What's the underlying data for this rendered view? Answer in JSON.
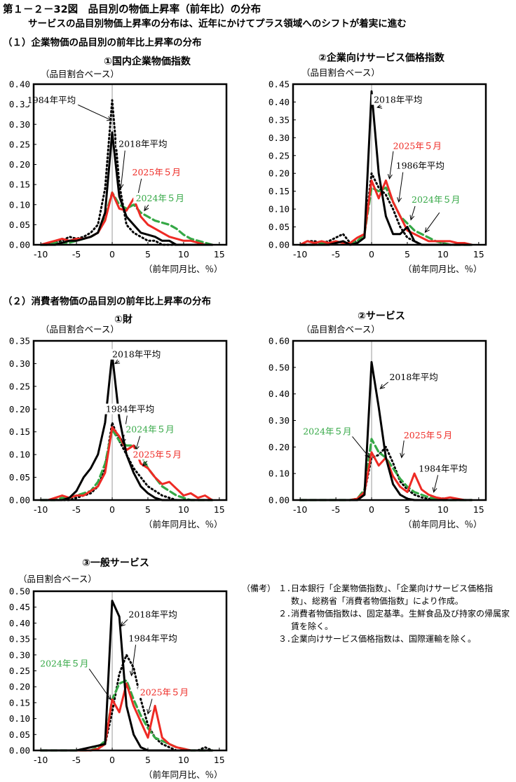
{
  "header": {
    "title": "第１－２－32図　品目別の物価上昇率（前年比）の分布",
    "subtitle": "サービスの品目別物価上昇率の分布は、近年にかけてプラス領域へのシフトが着実に進む"
  },
  "sections": {
    "s1": "（１）企業物価の品目別の前年比上昇率の分布",
    "s2": "（２）消費者物価の品目別の前年比上昇率の分布"
  },
  "axis_common": {
    "ylabel": "（品目割合ベース）",
    "xlabel": "（前年同月比、％）"
  },
  "colors": {
    "black": "#000000",
    "red": "#ee2a24",
    "green": "#35a846",
    "dotted": "#000000",
    "guide": "#9a9a9a"
  },
  "notes": {
    "head": "（備考）",
    "items": [
      {
        "num": "１．",
        "text": "日本銀行「企業物価指数」、「企業向けサービス価格指数」、総務省「消費者物価指数」により作成。"
      },
      {
        "num": "２．",
        "text": "消費者物価指数は、固定基準。生鮮食品及び持家の帰属家賃を除く。"
      },
      {
        "num": "３．",
        "text": "企業向けサービス価格指数は、国際運輸を除く。"
      }
    ]
  },
  "chart_data": [
    {
      "type": "line",
      "title": "①国内企業物価指数",
      "xlabel": "（前年同月比、％）",
      "ylabel": "（品目割合ベース）",
      "xlim": [
        -11,
        16
      ],
      "ylim": [
        0,
        0.4
      ],
      "xticks": [
        -10,
        -5,
        0,
        5,
        10,
        15
      ],
      "yticks": [
        "0.00",
        "0.05",
        "0.10",
        "0.15",
        "0.20",
        "0.25",
        "0.30",
        "0.35",
        "0.40"
      ],
      "x": [
        -10,
        -9,
        -8,
        -7,
        -6,
        -5,
        -4,
        -3,
        -2,
        -1,
        0,
        1,
        2,
        3,
        4,
        5,
        6,
        7,
        8,
        9,
        10,
        11,
        12,
        13,
        14
      ],
      "series": [
        {
          "name": "1984年平均",
          "style": "dotted",
          "values": [
            0,
            0,
            0.005,
            0.01,
            0.02,
            0.015,
            0.02,
            0.03,
            0.05,
            0.14,
            0.36,
            0.15,
            0.05,
            0.03,
            0.02,
            0.01,
            0.01,
            0,
            0,
            0,
            0,
            0,
            0,
            0,
            0
          ]
        },
        {
          "name": "2018年平均",
          "style": "black",
          "values": [
            0,
            0,
            0,
            0.005,
            0.01,
            0.01,
            0.015,
            0.02,
            0.03,
            0.08,
            0.28,
            0.12,
            0.07,
            0.05,
            0.03,
            0.025,
            0.02,
            0.01,
            0.01,
            0,
            0,
            0,
            0,
            0,
            0
          ]
        },
        {
          "name": "2025年５月",
          "style": "red",
          "values": [
            0,
            0.005,
            0.01,
            0.015,
            0.01,
            0.015,
            0.015,
            0.02,
            0.03,
            0.06,
            0.13,
            0.09,
            0.085,
            0.115,
            0.07,
            0.05,
            0.04,
            0.03,
            0.02,
            0.015,
            0.01,
            0.01,
            0.005,
            0,
            0
          ]
        },
        {
          "name": "2024年５月",
          "style": "green",
          "values": [
            0,
            0,
            0.005,
            0.005,
            0.005,
            0.01,
            0.015,
            0.02,
            0.03,
            0.07,
            0.13,
            0.1,
            0.09,
            0.1,
            0.08,
            0.07,
            0.06,
            0.055,
            0.05,
            0.04,
            0.025,
            0.015,
            0.01,
            0.005,
            0
          ]
        }
      ],
      "annotations": [
        {
          "text": "1984年平均",
          "color": "black",
          "x": -8.5,
          "y": 0.355,
          "ax": -0.1,
          "ay": 0.31
        },
        {
          "text": "2018年平均",
          "color": "black",
          "x": 4.3,
          "y": 0.245,
          "ax": 1.2,
          "ay": 0.14
        },
        {
          "text": "2025年５月",
          "color": "red",
          "x": 6.2,
          "y": 0.175,
          "ax": 3.5,
          "ay": 0.115
        },
        {
          "text": "2024年５月",
          "color": "green",
          "x": 6.7,
          "y": 0.11,
          "ax": 4.5,
          "ay": 0.085
        }
      ]
    },
    {
      "type": "line",
      "title": "②企業向けサービス価格指数",
      "xlabel": "（前年同月比、％）",
      "ylabel": "（品目割合ベース）",
      "xlim": [
        -11,
        16
      ],
      "ylim": [
        0,
        0.45
      ],
      "xticks": [
        -10,
        -5,
        0,
        5,
        10,
        15
      ],
      "yticks": [
        "0.00",
        "0.05",
        "0.10",
        "0.15",
        "0.20",
        "0.25",
        "0.30",
        "0.35",
        "0.40",
        "0.45"
      ],
      "x": [
        -10,
        -9,
        -8,
        -7,
        -6,
        -5,
        -4,
        -3,
        -2,
        -1,
        0,
        1,
        2,
        3,
        4,
        5,
        6,
        7,
        8,
        9,
        10,
        11,
        12,
        13,
        14
      ],
      "series": [
        {
          "name": "1986年平均",
          "style": "dotted",
          "values": [
            0,
            0.01,
            0.01,
            0.005,
            0.01,
            0.02,
            0.03,
            0.005,
            0.01,
            0.03,
            0.2,
            0.16,
            0.14,
            0.1,
            0.05,
            0.02,
            0.01,
            0,
            0,
            0,
            0,
            0,
            0,
            0,
            0
          ]
        },
        {
          "name": "2018年平均",
          "style": "black",
          "values": [
            0,
            0,
            0,
            0,
            0,
            0.005,
            0.01,
            0,
            0.005,
            0.02,
            0.43,
            0.2,
            0.08,
            0.03,
            0.03,
            0.05,
            0.01,
            0,
            0,
            0,
            0,
            0,
            0,
            0,
            0
          ]
        },
        {
          "name": "2025年５月",
          "style": "red",
          "values": [
            0,
            0.01,
            0.005,
            0.01,
            0.005,
            0.01,
            0.005,
            0.005,
            0.02,
            0.03,
            0.18,
            0.13,
            0.18,
            0.12,
            0.08,
            0.04,
            0.03,
            0.02,
            0.01,
            0.01,
            0.01,
            0.01,
            0.005,
            0.005,
            0
          ]
        },
        {
          "name": "2024年５月",
          "style": "green",
          "values": [
            0,
            0,
            0,
            0.005,
            0.005,
            0.01,
            0.005,
            0.005,
            0.01,
            0.03,
            0.16,
            0.15,
            0.16,
            0.12,
            0.08,
            0.06,
            0.04,
            0.03,
            0.02,
            0.01,
            0.005,
            0,
            0,
            0,
            0
          ]
        }
      ],
      "annotations": [
        {
          "text": "2018年平均",
          "color": "black",
          "x": 3.7,
          "y": 0.4,
          "ax": 0.8,
          "ay": 0.385
        },
        {
          "text": "2025年５月",
          "color": "red",
          "x": 6.4,
          "y": 0.27,
          "ax": 2.5,
          "ay": 0.185
        },
        {
          "text": "1986年平均",
          "color": "black",
          "x": 6.8,
          "y": 0.215,
          "ax": 3.8,
          "ay": 0.12
        },
        {
          "text": "2024年５月",
          "color": "green",
          "x": 9,
          "y": 0.12,
          "ax": 5.5,
          "ay": 0.07
        },
        {
          "text": "",
          "color": "black",
          "x": 9.5,
          "y": 0.09,
          "ax": 7.5,
          "ay": 0.035
        }
      ]
    },
    {
      "type": "line",
      "title": "①財",
      "xlabel": "（前年同月比、％）",
      "ylabel": "（品目割合ベース）",
      "xlim": [
        -11,
        16
      ],
      "ylim": [
        0,
        0.35
      ],
      "xticks": [
        -10,
        -5,
        0,
        5,
        10,
        15
      ],
      "yticks": [
        "0.00",
        "0.05",
        "0.10",
        "0.15",
        "0.20",
        "0.25",
        "0.30",
        "0.35"
      ],
      "x": [
        -10,
        -9,
        -8,
        -7,
        -6,
        -5,
        -4,
        -3,
        -2,
        -1,
        0,
        1,
        2,
        3,
        4,
        5,
        6,
        7,
        8,
        9,
        10,
        11,
        12,
        13,
        14
      ],
      "series": [
        {
          "name": "1984年平均",
          "style": "dotted",
          "values": [
            0,
            0,
            0,
            0,
            0,
            0.005,
            0.01,
            0.015,
            0.03,
            0.07,
            0.17,
            0.13,
            0.1,
            0.07,
            0.05,
            0.03,
            0.02,
            0.01,
            0.005,
            0,
            0,
            0,
            0,
            0,
            0
          ]
        },
        {
          "name": "2018年平均",
          "style": "black",
          "values": [
            0,
            0,
            0,
            0,
            0.005,
            0.02,
            0.05,
            0.07,
            0.1,
            0.17,
            0.32,
            0.18,
            0.1,
            0.06,
            0.03,
            0.015,
            0.005,
            0,
            0,
            0,
            0,
            0,
            0,
            0,
            0
          ]
        },
        {
          "name": "2025年５月",
          "style": "red",
          "values": [
            0,
            0,
            0.005,
            0.01,
            0.005,
            0.01,
            0.01,
            0.02,
            0.03,
            0.06,
            0.16,
            0.14,
            0.11,
            0.12,
            0.08,
            0.07,
            0.05,
            0.035,
            0.04,
            0.025,
            0.01,
            0.015,
            0.005,
            0.01,
            0
          ]
        },
        {
          "name": "2024年５月",
          "style": "green",
          "values": [
            0,
            0,
            0,
            0.005,
            0.005,
            0.01,
            0.015,
            0.02,
            0.04,
            0.08,
            0.155,
            0.13,
            0.12,
            0.12,
            0.1,
            0.07,
            0.05,
            0.03,
            0.02,
            0.01,
            0.005,
            0,
            0,
            0,
            0
          ]
        }
      ],
      "annotations": [
        {
          "text": "2018年平均",
          "color": "black",
          "x": 3.4,
          "y": 0.315,
          "ax": 0.4,
          "ay": 0.3
        },
        {
          "text": "1984年平均",
          "color": "black",
          "x": 2.5,
          "y": 0.195,
          "ax": 1.5,
          "ay": 0.125
        },
        {
          "text": "2024年５月",
          "color": "green",
          "x": 5.3,
          "y": 0.15,
          "ax": 3.3,
          "ay": 0.11
        },
        {
          "text": "2025年５月",
          "color": "red",
          "x": 6.3,
          "y": 0.095,
          "ax": 4.3,
          "ay": 0.075
        }
      ]
    },
    {
      "type": "line",
      "title": "②サービス",
      "xlabel": "（前年同月比、％）",
      "ylabel": "（品目割合ベース）",
      "xlim": [
        -11,
        16
      ],
      "ylim": [
        0,
        0.6
      ],
      "xticks": [
        -10,
        -5,
        0,
        5,
        10,
        15
      ],
      "yticks": [
        "0.00",
        "0.10",
        "0.20",
        "0.30",
        "0.40",
        "0.50",
        "0.60"
      ],
      "x": [
        -10,
        -9,
        -8,
        -7,
        -6,
        -5,
        -4,
        -3,
        -2,
        -1,
        0,
        1,
        2,
        3,
        4,
        5,
        6,
        7,
        8,
        9,
        10,
        11,
        12,
        13,
        14
      ],
      "series": [
        {
          "name": "1984年平均",
          "style": "dotted",
          "values": [
            0,
            0,
            0,
            0,
            0,
            0,
            0,
            0,
            0.005,
            0.03,
            0.16,
            0.17,
            0.2,
            0.14,
            0.07,
            0.04,
            0.02,
            0.01,
            0.005,
            0,
            0,
            0,
            0,
            0,
            0
          ]
        },
        {
          "name": "2018年平均",
          "style": "black",
          "values": [
            0,
            0,
            0,
            0,
            0,
            0,
            0,
            0,
            0,
            0.02,
            0.52,
            0.35,
            0.16,
            0.06,
            0.02,
            0.005,
            0,
            0,
            0,
            0,
            0,
            0,
            0,
            0,
            0
          ]
        },
        {
          "name": "2025年５月",
          "style": "red",
          "values": [
            0,
            0,
            0,
            0,
            0,
            0,
            0,
            0,
            0.005,
            0.03,
            0.18,
            0.13,
            0.16,
            0.09,
            0.05,
            0.03,
            0.1,
            0.04,
            0.02,
            0.01,
            0.005,
            0.01,
            0.005,
            0,
            0
          ]
        },
        {
          "name": "2024年５月",
          "style": "green",
          "values": [
            0,
            0,
            0,
            0,
            0,
            0,
            0,
            0,
            0.005,
            0.04,
            0.23,
            0.18,
            0.16,
            0.12,
            0.08,
            0.05,
            0.03,
            0.02,
            0.01,
            0.005,
            0,
            0,
            0,
            0,
            0
          ]
        }
      ],
      "annotations": [
        {
          "text": "2018年平均",
          "color": "black",
          "x": 5.9,
          "y": 0.455,
          "ax": 1.2,
          "ay": 0.42
        },
        {
          "text": "2024年５月",
          "color": "green",
          "x": -6.2,
          "y": 0.25,
          "ax": -0.3,
          "ay": 0.16
        },
        {
          "text": "2025年５月",
          "color": "red",
          "x": 7.9,
          "y": 0.235,
          "ax": 4.2,
          "ay": 0.16
        },
        {
          "text": "1984年平均",
          "color": "black",
          "x": 10,
          "y": 0.11,
          "ax": 8.7,
          "ay": 0.03
        }
      ]
    },
    {
      "type": "line",
      "title": "③一般サービス",
      "xlabel": "（前年同月比、％）",
      "ylabel": "（品目割合ベース）",
      "xlim": [
        -11,
        16
      ],
      "ylim": [
        0,
        0.5
      ],
      "xticks": [
        -10,
        -5,
        0,
        5,
        10,
        15
      ],
      "yticks": [
        "0.00",
        "0.05",
        "0.10",
        "0.15",
        "0.20",
        "0.25",
        "0.30",
        "0.35",
        "0.40",
        "0.45",
        "0.50"
      ],
      "x": [
        -10,
        -9,
        -8,
        -7,
        -6,
        -5,
        -4,
        -3,
        -2,
        -1,
        0,
        1,
        2,
        3,
        4,
        5,
        6,
        7,
        8,
        9,
        10,
        11,
        12,
        13,
        14
      ],
      "series": [
        {
          "name": "1984年平均",
          "style": "dotted",
          "values": [
            0,
            0,
            0,
            0,
            0,
            0,
            0,
            0,
            0.005,
            0.02,
            0.12,
            0.24,
            0.3,
            0.26,
            0.16,
            0.08,
            0.04,
            0.02,
            0.01,
            0,
            0,
            0,
            0,
            0.01,
            0
          ]
        },
        {
          "name": "2018年平均",
          "style": "black",
          "values": [
            0,
            0,
            0,
            0,
            0,
            0,
            0.005,
            0.01,
            0.015,
            0.02,
            0.47,
            0.42,
            0.14,
            0.05,
            0.01,
            0,
            0,
            0,
            0,
            0,
            0,
            0,
            0,
            0,
            0
          ]
        },
        {
          "name": "2025年５月",
          "style": "red",
          "values": [
            0,
            0,
            0,
            0,
            0,
            0,
            0,
            0,
            0.005,
            0.02,
            0.16,
            0.12,
            0.21,
            0.14,
            0.09,
            0.04,
            0.14,
            0.04,
            0.02,
            0.01,
            0.005,
            0,
            0,
            0,
            0
          ]
        },
        {
          "name": "2024年５月",
          "style": "green",
          "values": [
            0,
            0,
            0,
            0,
            0,
            0,
            0,
            0,
            0.01,
            0.03,
            0.16,
            0.21,
            0.22,
            0.16,
            0.11,
            0.07,
            0.04,
            0.03,
            0.02,
            0.01,
            0.005,
            0,
            0,
            0,
            0
          ]
        }
      ],
      "annotations": [
        {
          "text": "2018年平均",
          "color": "black",
          "x": 5.7,
          "y": 0.42,
          "ax": 1.2,
          "ay": 0.39
        },
        {
          "text": "1984年平均",
          "color": "black",
          "x": 5.7,
          "y": 0.345,
          "ax": 2.7,
          "ay": 0.235
        },
        {
          "text": "2024年５月",
          "color": "green",
          "x": -6.7,
          "y": 0.265,
          "ax": -0.2,
          "ay": 0.16
        },
        {
          "text": "2025年５月",
          "color": "red",
          "x": 7.3,
          "y": 0.175,
          "ax": 5,
          "ay": 0.115
        }
      ]
    }
  ]
}
